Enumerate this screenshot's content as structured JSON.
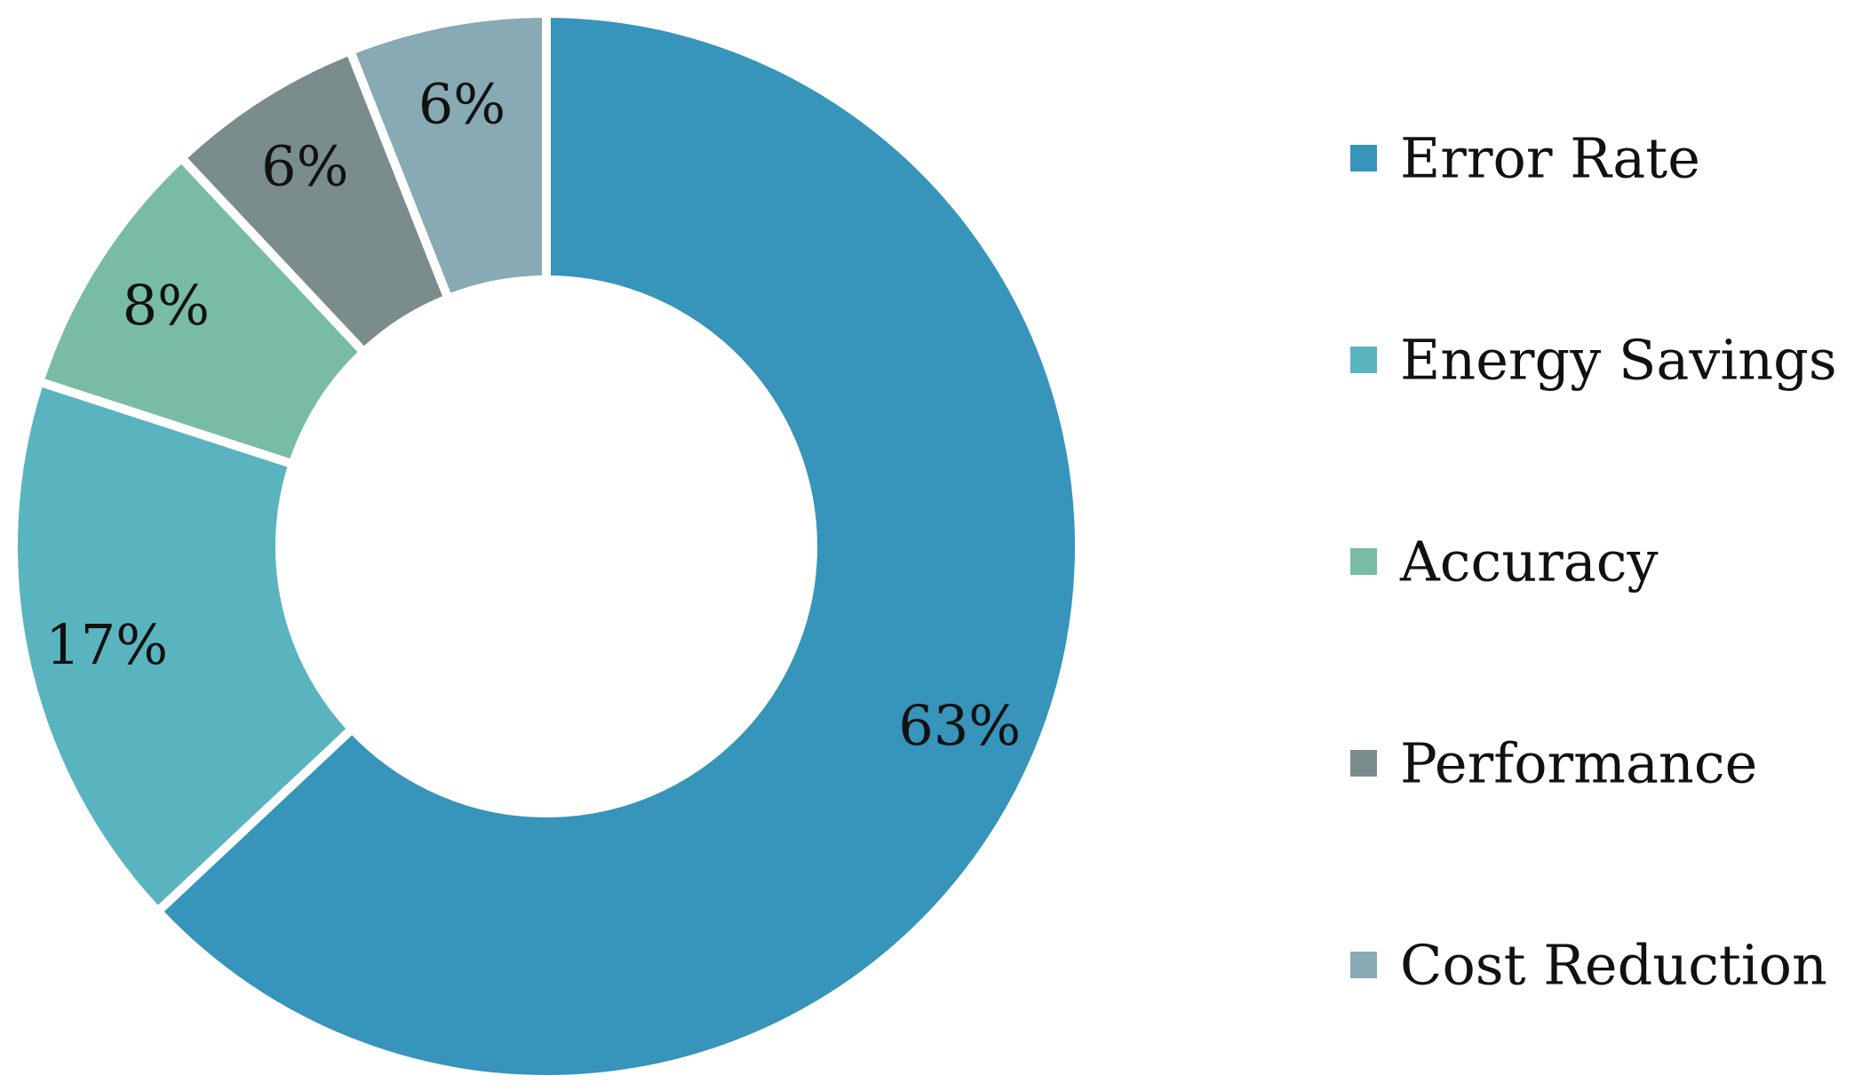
{
  "chart_data": {
    "type": "pie",
    "subtype": "donut",
    "title": "",
    "categories": [
      "Error Rate",
      "Energy Savings",
      "Accuracy",
      "Performance",
      "Cost Reduction"
    ],
    "values": [
      63,
      17,
      8,
      6,
      6
    ],
    "labels": [
      "63%",
      "17%",
      "8%",
      "6%",
      "6%"
    ],
    "colors": [
      "#3794BA",
      "#5AB4BF",
      "#78BCA3",
      "#7B8C8C",
      "#87AAB4"
    ],
    "legend": {
      "placement": "right",
      "entries": [
        "Error Rate",
        "Energy Savings",
        "Accuracy",
        "Performance",
        "Cost Reduction"
      ]
    }
  }
}
